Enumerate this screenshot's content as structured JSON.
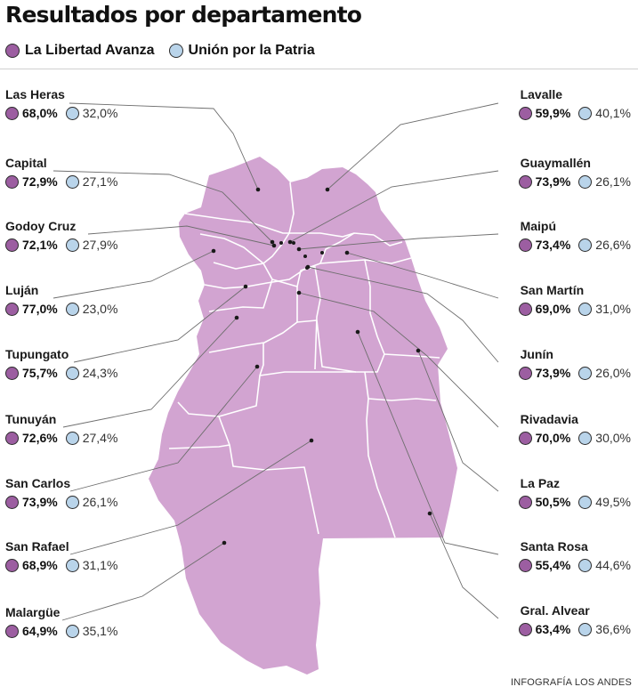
{
  "title": "Resultados por departamento",
  "legend": {
    "lla_label": "La Libertad Avanza",
    "uxp_label": "Unión por la Patria"
  },
  "colors": {
    "lla": "#9c5ea1",
    "uxp": "#b9d4ea",
    "map_fill": "#d2a4d1",
    "map_border": "#ffffff",
    "leader": "#6e6e6e"
  },
  "departments": {
    "las_heras": {
      "name": "Las Heras",
      "lla": "68,0%",
      "uxp": "32,0%"
    },
    "capital": {
      "name": "Capital",
      "lla": "72,9%",
      "uxp": "27,1%"
    },
    "godoy_cruz": {
      "name": "Godoy Cruz",
      "lla": "72,1%",
      "uxp": "27,9%"
    },
    "lujan": {
      "name": "Luján",
      "lla": "77,0%",
      "uxp": "23,0%"
    },
    "tupungato": {
      "name": "Tupungato",
      "lla": "75,7%",
      "uxp": "24,3%"
    },
    "tunuyan": {
      "name": "Tunuyán",
      "lla": "72,6%",
      "uxp": "27,4%"
    },
    "san_carlos": {
      "name": "San Carlos",
      "lla": "73,9%",
      "uxp": "26,1%"
    },
    "san_rafael": {
      "name": "San Rafael",
      "lla": "68,9%",
      "uxp": "31,1%"
    },
    "malargue": {
      "name": "Malargüe",
      "lla": "64,9%",
      "uxp": "35,1%"
    },
    "lavalle": {
      "name": "Lavalle",
      "lla": "59,9%",
      "uxp": "40,1%"
    },
    "guaymallen": {
      "name": "Guaymallén",
      "lla": "73,9%",
      "uxp": "26,1%"
    },
    "maipu": {
      "name": "Maipú",
      "lla": "73,4%",
      "uxp": "26,6%"
    },
    "san_martin": {
      "name": "San Martín",
      "lla": "69,0%",
      "uxp": "31,0%"
    },
    "junin": {
      "name": "Junín",
      "lla": "73,9%",
      "uxp": "26,0%"
    },
    "rivadavia": {
      "name": "Rivadavia",
      "lla": "70,0%",
      "uxp": "30,0%"
    },
    "la_paz": {
      "name": "La Paz",
      "lla": "50,5%",
      "uxp": "49,5%"
    },
    "santa_rosa": {
      "name": "Santa Rosa",
      "lla": "55,4%",
      "uxp": "44,6%"
    },
    "gral_alvear": {
      "name": "Gral. Alvear",
      "lla": "63,4%",
      "uxp": "36,6%"
    }
  },
  "credit": "INFOGRAFÍA LOS ANDES"
}
